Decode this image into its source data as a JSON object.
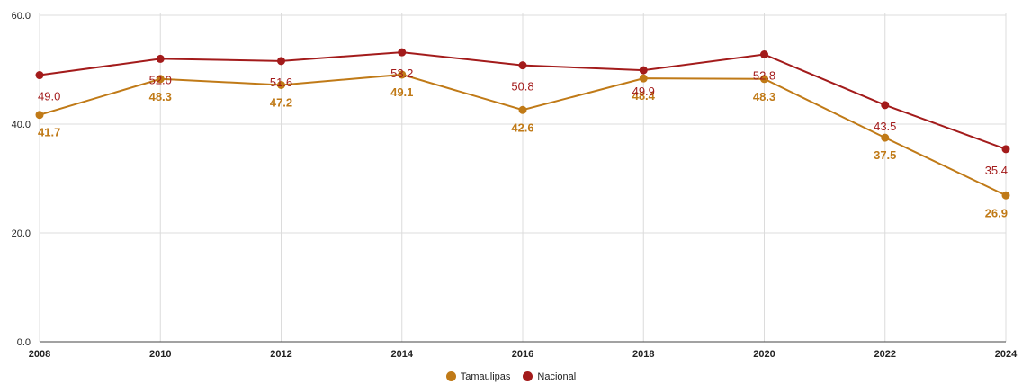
{
  "chart_data": {
    "type": "line",
    "x": [
      "2008",
      "2010",
      "2012",
      "2014",
      "2016",
      "2018",
      "2020",
      "2022",
      "2024"
    ],
    "series": [
      {
        "name": "Tamaulipas",
        "color": "#c07a17",
        "values": [
          41.7,
          48.3,
          47.2,
          49.1,
          42.6,
          48.4,
          48.3,
          37.5,
          26.9
        ],
        "labels": [
          "41.7",
          "48.3",
          "47.2",
          "49.1",
          "42.6",
          "48.4",
          "48.3",
          "37.5",
          "26.9"
        ]
      },
      {
        "name": "Nacional",
        "color": "#a31b1b",
        "values": [
          49.0,
          52.0,
          51.6,
          53.2,
          50.8,
          49.9,
          52.8,
          43.5,
          35.4
        ],
        "labels": [
          "49.0",
          "52.0",
          "51.6",
          "53.2",
          "50.8",
          "49.9",
          "52.8",
          "43.5",
          "35.4"
        ]
      }
    ],
    "y_ticks": [
      "0.0",
      "20.0",
      "40.0",
      "60.0"
    ],
    "ylim": [
      0,
      60
    ],
    "title": "",
    "xlabel": "",
    "ylabel": "",
    "grid": true,
    "legend_position": "bottom"
  }
}
